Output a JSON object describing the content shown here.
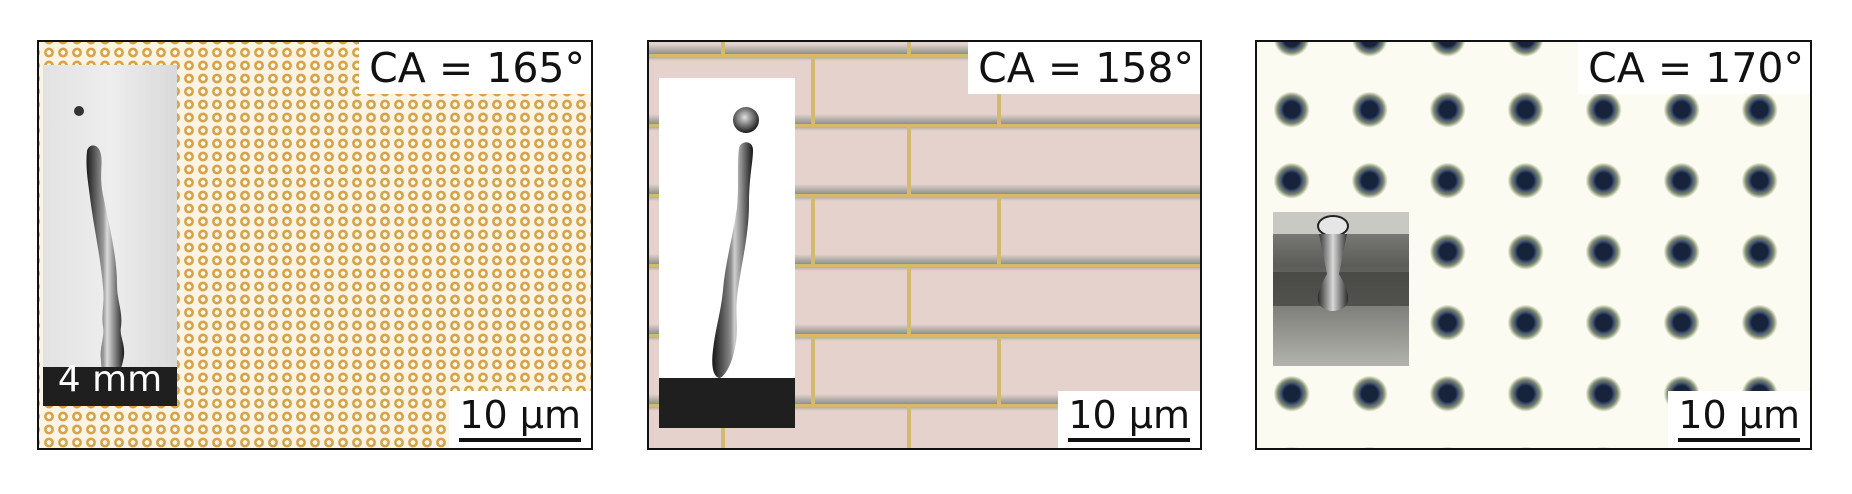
{
  "panels": [
    {
      "contact_angle_label": "CA = 165°",
      "scale_bar_label": "10 µm",
      "inset_label": "4 mm"
    },
    {
      "contact_angle_label": "CA = 158°",
      "scale_bar_label": "10 µm"
    },
    {
      "contact_angle_label": "CA = 170°",
      "scale_bar_label": "10 µm"
    }
  ],
  "colors": {
    "panel1_dots": "#d7a24a",
    "panel2_bricks": "#e6d2cc",
    "panel2_mortar": "#d3ba6d",
    "panel3_pillars": "#16233b"
  }
}
